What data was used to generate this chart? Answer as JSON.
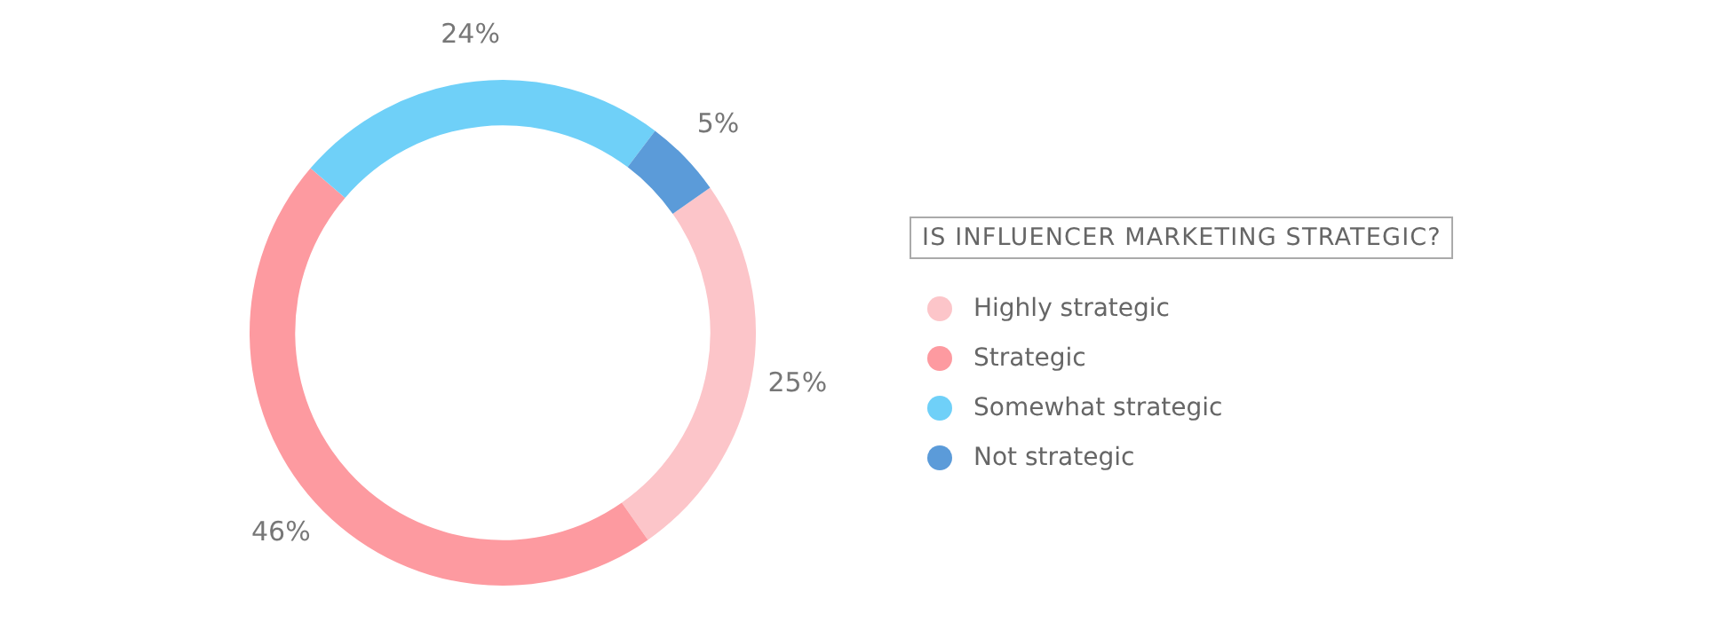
{
  "chart_data": {
    "type": "donut",
    "legend_title": "IS INFLUENCER MARKETING STRATEGIC?",
    "categories": [
      "Highly strategic",
      "Strategic",
      "Somewhat strategic",
      "Not strategic"
    ],
    "values": [
      25,
      46,
      24,
      5
    ],
    "colors": [
      "#fcc5c9",
      "#fd9aa0",
      "#6fd0f8",
      "#5b9bd9"
    ],
    "value_labels": [
      "25%",
      "46%",
      "24%",
      "5%"
    ],
    "legend": "right"
  }
}
